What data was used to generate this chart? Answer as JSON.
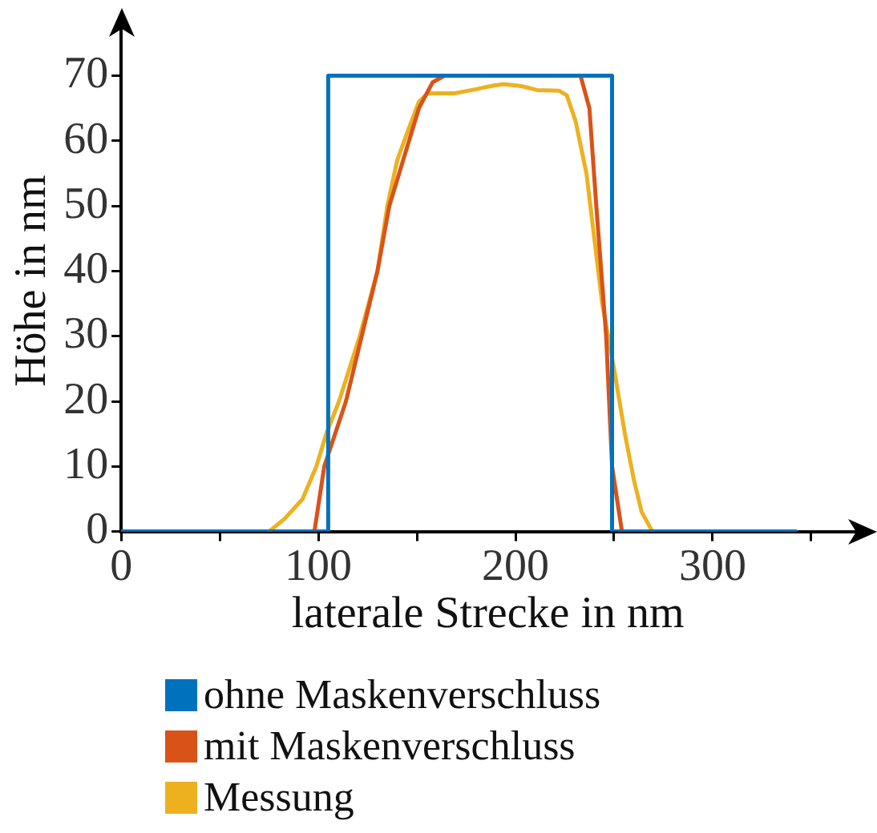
{
  "chart_data": {
    "type": "line",
    "xlabel": "laterale Strecke in nm",
    "ylabel": "Höhe in nm",
    "xlim": [
      0,
      372
    ],
    "ylim": [
      0,
      77
    ],
    "xticks": [
      0,
      {
        "value": 50,
        "label": null
      },
      100,
      {
        "value": 150,
        "label": null
      },
      200,
      {
        "value": 250,
        "label": null
      },
      300,
      {
        "value": 350,
        "label": null
      }
    ],
    "yticks": [
      0,
      10,
      20,
      30,
      40,
      50,
      60,
      70
    ],
    "grid": false,
    "legend": "bottom",
    "marker": "none",
    "line_style": "solid",
    "series": [
      {
        "name": "ohne Maskenverschluss",
        "color": "#0072bd",
        "x": [
          0,
          105,
          105,
          249,
          249,
          342
        ],
        "values": [
          0,
          0,
          70,
          70,
          0,
          0
        ]
      },
      {
        "name": "mit Maskenverschluss",
        "color": "#d95319",
        "x": [
          0,
          98,
          103,
          114,
          122,
          130,
          136,
          146,
          151,
          158,
          164,
          233,
          237.5,
          241,
          246,
          249,
          254,
          342
        ],
        "values": [
          0,
          0,
          10,
          20,
          30,
          40,
          50,
          60,
          65,
          69,
          70,
          70,
          65,
          50,
          30,
          10,
          0,
          0
        ]
      },
      {
        "name": "Messung",
        "color": "#edb120",
        "x": [
          75,
          83,
          92,
          99,
          104,
          110.5,
          121,
          130,
          135,
          140,
          146,
          151,
          155.5,
          169,
          178,
          189,
          194,
          203,
          211,
          222,
          226,
          230.5,
          236,
          240,
          244,
          250,
          255.5,
          260,
          264,
          269.5
        ],
        "values": [
          0,
          2,
          5,
          10,
          15,
          20,
          30,
          40,
          50,
          57,
          62,
          66,
          67.3,
          67.3,
          67.8,
          68.5,
          68.7,
          68.4,
          67.8,
          67.7,
          67,
          63,
          55,
          45,
          35,
          25,
          15,
          8,
          3,
          0
        ]
      }
    ]
  }
}
